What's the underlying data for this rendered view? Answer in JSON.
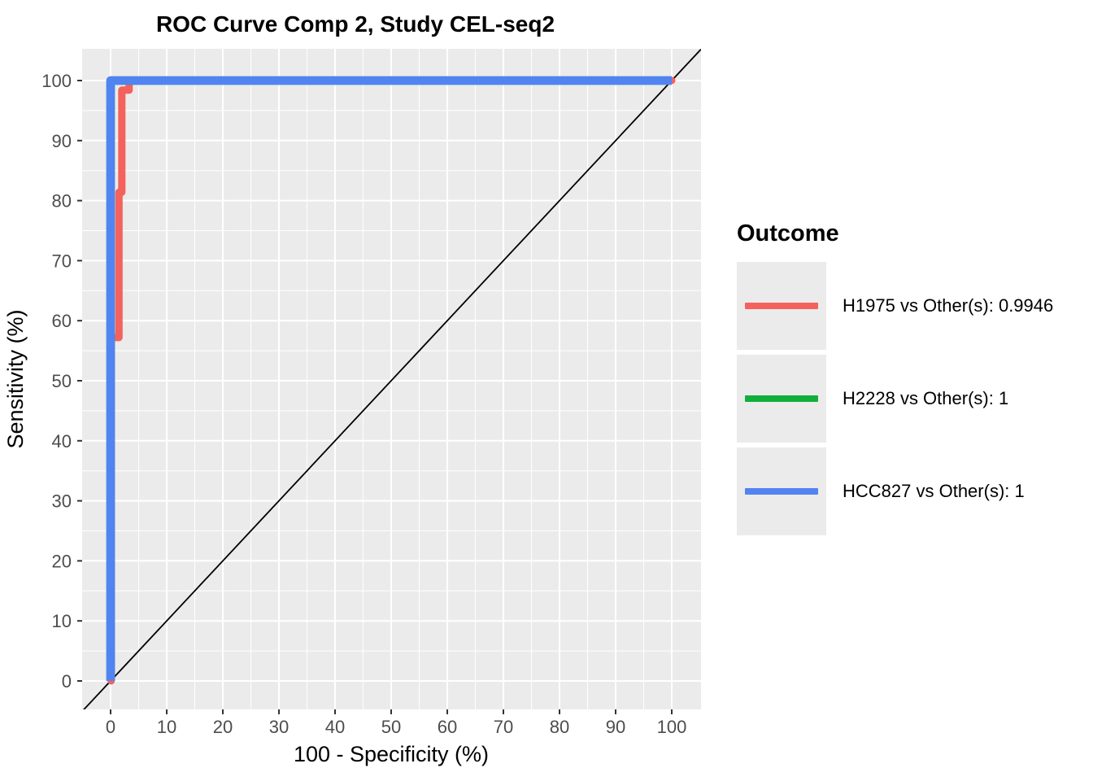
{
  "chart_data": {
    "type": "line",
    "subtype": "roc-curve",
    "title": "ROC Curve Comp 2, Study CEL-seq2",
    "xlabel": "100 - Specificity (%)",
    "ylabel": "Sensitivity (%)",
    "xlim": [
      -5,
      105
    ],
    "ylim": [
      -5,
      105
    ],
    "x_ticks": [
      0,
      10,
      20,
      30,
      40,
      50,
      60,
      70,
      80,
      90,
      100
    ],
    "y_ticks": [
      0,
      10,
      20,
      30,
      40,
      50,
      60,
      70,
      80,
      90,
      100
    ],
    "minor_ticks": [
      5,
      15,
      25,
      35,
      45,
      55,
      65,
      75,
      85,
      95
    ],
    "grid": "major and minor white gridlines on gray panel",
    "panel_bg": "#EBEBEB",
    "grid_color": "#FFFFFF",
    "tick_color": "#333333",
    "tick_label_color": "#4D4D4D",
    "reference_line": {
      "name": "chance-diagonal",
      "from": [
        -5.1,
        -5.1
      ],
      "to": [
        105.2,
        105.2
      ],
      "color": "#000000",
      "width": 1.8
    },
    "series": [
      {
        "name": "H1975 vs Other(s)",
        "auc": 0.9946,
        "color": "#F4625D",
        "linewidth": 9,
        "points": [
          [
            0.1,
            0
          ],
          [
            0.1,
            57.2
          ],
          [
            1.5,
            57.2
          ],
          [
            1.5,
            81.4
          ],
          [
            2.0,
            81.4
          ],
          [
            2.0,
            98.4
          ],
          [
            3.3,
            98.4
          ],
          [
            3.3,
            100
          ],
          [
            100,
            100
          ]
        ]
      },
      {
        "name": "H2228 vs Other(s)",
        "auc": 1,
        "color": "#12AE3B",
        "linewidth": 10.5,
        "points": [
          [
            0,
            0
          ],
          [
            0,
            100
          ],
          [
            100,
            100
          ]
        ]
      },
      {
        "name": "HCC827 vs Other(s)",
        "auc": 1,
        "color": "#5283F2",
        "linewidth": 10.5,
        "points": [
          [
            0,
            0
          ],
          [
            0,
            100
          ],
          [
            100,
            100
          ]
        ]
      }
    ],
    "legend": {
      "title": "Outcome",
      "position": "right",
      "key_bg": "#EBEBEB",
      "entries": [
        {
          "label": "H1975 vs Other(s): 0.9946",
          "color": "#F4625D"
        },
        {
          "label": "H2228 vs Other(s): 1",
          "color": "#12AE3B"
        },
        {
          "label": "HCC827 vs Other(s): 1",
          "color": "#5283F2"
        }
      ]
    }
  }
}
